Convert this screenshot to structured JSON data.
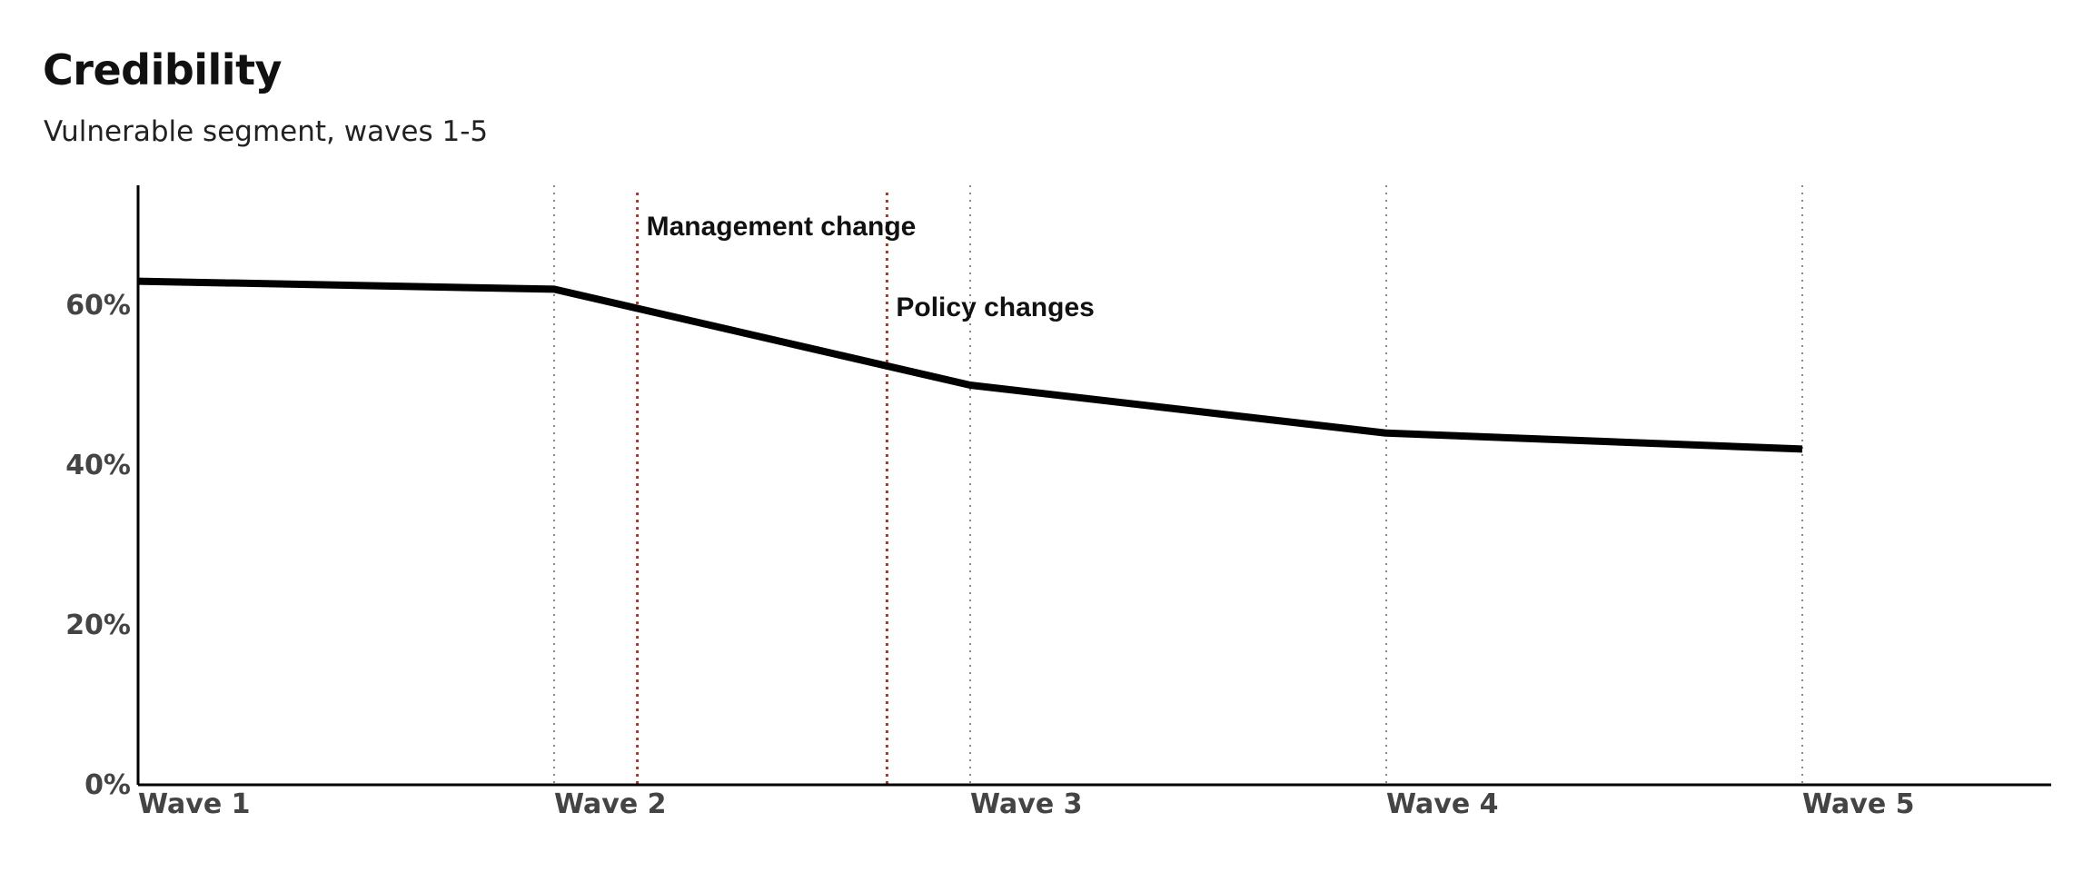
{
  "title": "Credibility",
  "subtitle": "Vulnerable segment, waves 1-5",
  "colors": {
    "line": "#000000",
    "axis": "#000000",
    "wave_gridline": "#888888",
    "event_line": "#a33a2a",
    "tick_text": "#444444"
  },
  "chart_data": {
    "type": "line",
    "title": "Credibility",
    "subtitle": "Vulnerable segment, waves 1-5",
    "xlabel": "",
    "ylabel": "",
    "categories": [
      "Wave 1",
      "Wave 2",
      "Wave 3",
      "Wave 4",
      "Wave 5"
    ],
    "series": [
      {
        "values": [
          63,
          62,
          50,
          44,
          42
        ]
      }
    ],
    "ylim": [
      0,
      75
    ],
    "yticks": [
      0,
      20,
      40,
      60
    ],
    "ytick_labels": [
      "0%",
      "20%",
      "40%",
      "60%"
    ],
    "grid": "vertical dotted lines at each wave",
    "annotations": [
      {
        "label": "Management change",
        "x": 1.2
      },
      {
        "label": "Policy changes",
        "x": 1.8
      }
    ]
  }
}
